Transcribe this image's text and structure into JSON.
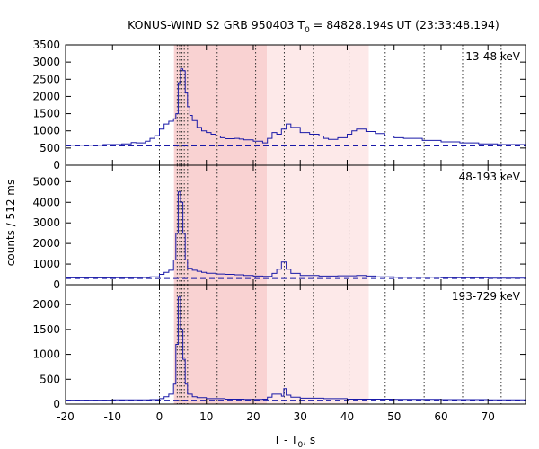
{
  "chart_data": {
    "type": "line",
    "title": {
      "prefix": "KONUS-WIND S2 GRB 950403 T",
      "sub": "0",
      "suffix": " = 84828.194s UT (23:33:48.194)"
    },
    "xlabel": {
      "prefix": "T - T",
      "sub": "0",
      "suffix": ", s"
    },
    "ylabel": "counts / 512 ms",
    "xlim": [
      -20,
      78
    ],
    "xticks": [
      -20,
      -10,
      0,
      10,
      20,
      30,
      40,
      50,
      60,
      70
    ],
    "colors": {
      "series": "#1a1aa8",
      "background_fit": "#1a1aa8",
      "interval_dark": "#f9d2d2",
      "interval_light": "#fde9e9",
      "marker_lines": "#333333"
    },
    "shaded_intervals": [
      {
        "x": [
          3.1,
          22.9
        ],
        "shade": "dark"
      },
      {
        "x": [
          22.9,
          44.6
        ],
        "shade": "light"
      }
    ],
    "dotted_markers": [
      0.0,
      3.8,
      4.3,
      4.8,
      5.3,
      6.0,
      12.3,
      20.5,
      26.6,
      32.8,
      40.4,
      48.1,
      56.4,
      64.6,
      72.8
    ],
    "panels": [
      {
        "band": "13-48 keV",
        "ylim": [
          0,
          3500
        ],
        "yticks": [
          0,
          500,
          1000,
          1500,
          2000,
          2500,
          3000,
          3500
        ],
        "background_level": 560,
        "series": {
          "x": [
            -20,
            -12,
            -8,
            -6,
            -5,
            -3,
            -2,
            -1,
            0,
            1,
            2,
            3,
            3.5,
            4,
            4.5,
            5,
            5.5,
            6,
            6.5,
            7,
            8,
            9,
            10,
            11,
            12,
            13,
            14,
            16,
            17,
            18,
            20,
            22,
            23,
            24,
            25,
            26,
            27,
            28,
            30,
            32,
            34,
            35,
            36,
            38,
            40,
            41,
            42,
            44,
            46,
            48,
            50,
            52,
            56,
            60,
            64,
            68,
            72,
            78
          ],
          "y": [
            580,
            600,
            620,
            660,
            650,
            700,
            780,
            860,
            1050,
            1200,
            1280,
            1350,
            1500,
            2400,
            2800,
            2750,
            2100,
            1700,
            1450,
            1300,
            1100,
            1000,
            950,
            900,
            850,
            800,
            770,
            780,
            760,
            740,
            700,
            650,
            780,
            950,
            900,
            1050,
            1200,
            1100,
            950,
            900,
            850,
            780,
            750,
            800,
            900,
            1000,
            1050,
            980,
            920,
            850,
            800,
            780,
            720,
            680,
            650,
            620,
            600,
            580
          ]
        }
      },
      {
        "band": "48-193 keV",
        "ylim": [
          0,
          5800
        ],
        "yticks": [
          0,
          1000,
          2000,
          3000,
          4000,
          5000
        ],
        "background_level": 300,
        "series": {
          "x": [
            -20,
            -10,
            -5,
            -2,
            0,
            1,
            2,
            3,
            3.5,
            4,
            4.5,
            5,
            5.5,
            6,
            7,
            8,
            9,
            10,
            12,
            14,
            16,
            18,
            20,
            22,
            24,
            25,
            26,
            27,
            28,
            30,
            34,
            38,
            42,
            44,
            46,
            50,
            60,
            70,
            78
          ],
          "y": [
            330,
            340,
            350,
            380,
            500,
            600,
            700,
            1200,
            2500,
            4500,
            4000,
            2500,
            1200,
            800,
            700,
            650,
            600,
            560,
            520,
            500,
            480,
            450,
            420,
            400,
            550,
            750,
            1100,
            750,
            550,
            450,
            420,
            430,
            450,
            420,
            380,
            360,
            340,
            320,
            310
          ]
        }
      },
      {
        "band": "193-729 keV",
        "ylim": [
          0,
          2400
        ],
        "yticks": [
          0,
          500,
          1000,
          1500,
          2000
        ],
        "background_level": 80,
        "series": {
          "x": [
            -20,
            -10,
            -2,
            0,
            1,
            2,
            3,
            3.5,
            4,
            4.5,
            5,
            5.5,
            6,
            7,
            8,
            10,
            14,
            18,
            20,
            22,
            23,
            24,
            26,
            26.5,
            27,
            28,
            30,
            35,
            40,
            45,
            50,
            60,
            70,
            78
          ],
          "y": [
            80,
            85,
            90,
            110,
            150,
            200,
            400,
            1200,
            2150,
            1500,
            900,
            400,
            200,
            150,
            130,
            110,
            100,
            95,
            95,
            100,
            140,
            200,
            160,
            310,
            180,
            140,
            120,
            110,
            100,
            100,
            95,
            90,
            85,
            80
          ]
        }
      }
    ]
  }
}
